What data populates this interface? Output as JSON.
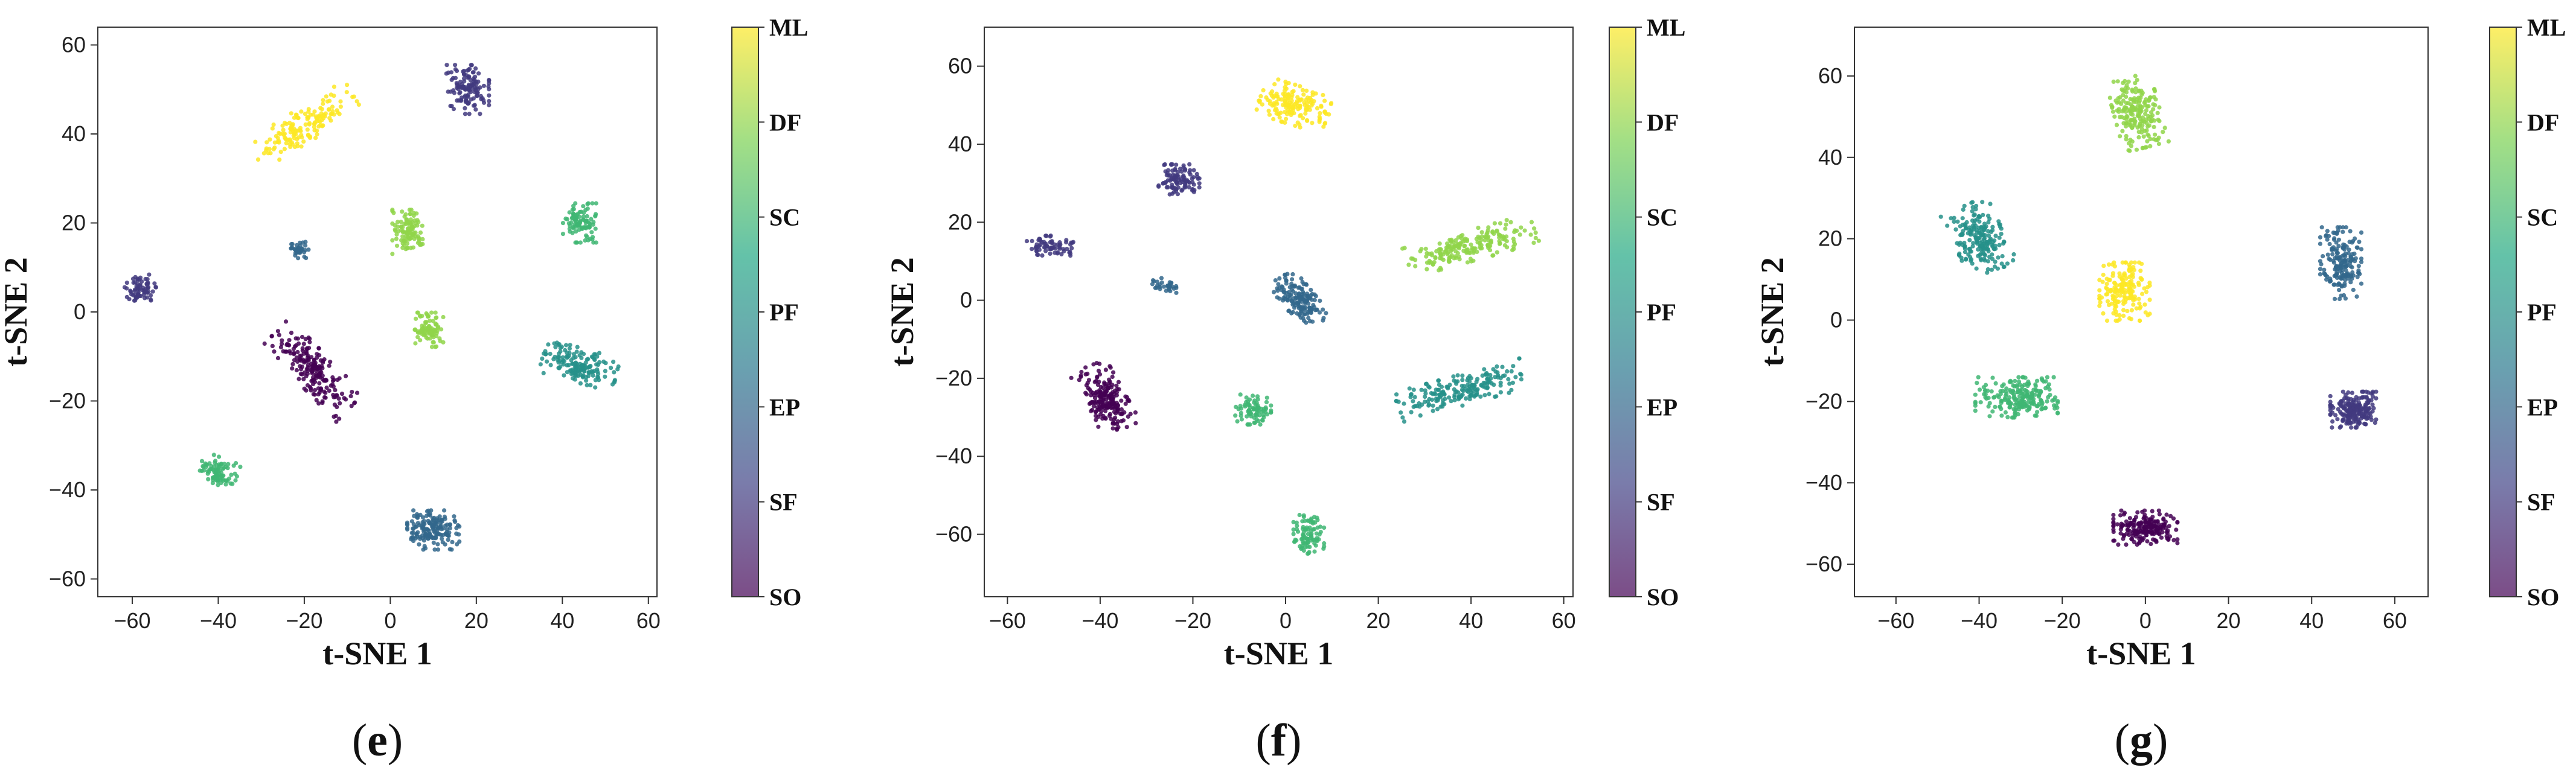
{
  "colors": {
    "viridis_stops": [
      "#440154",
      "#414487",
      "#2a788e",
      "#22a884",
      "#7ad151",
      "#fde725"
    ]
  },
  "colorbar_labels": [
    "SO",
    "SF",
    "EP",
    "PF",
    "SC",
    "DF",
    "ML"
  ],
  "chart_data": [
    {
      "type": "scatter",
      "caption": "e",
      "xlabel": "t-SNE 1",
      "ylabel": "t-SNE 2",
      "xlim": [
        -68,
        62
      ],
      "ylim": [
        -64,
        64
      ],
      "xticks": [
        -60,
        -40,
        -20,
        0,
        20,
        40,
        60
      ],
      "yticks": [
        -60,
        -40,
        -20,
        0,
        20,
        40,
        60
      ],
      "colorbar": [
        "SO",
        "SF",
        "EP",
        "PF",
        "SC",
        "DF",
        "ML"
      ],
      "clusters": [
        {
          "class": "ML",
          "cx": -20,
          "cy": 42,
          "sx": 12,
          "sy": 3.5,
          "angle": 32,
          "n": 160
        },
        {
          "class": "SF",
          "cx": 18,
          "cy": 50,
          "sx": 4.5,
          "sy": 5,
          "angle": 0,
          "n": 130
        },
        {
          "class": "EP",
          "cx": -21,
          "cy": 14,
          "sx": 2,
          "sy": 1.8,
          "angle": 0,
          "n": 35
        },
        {
          "class": "DF",
          "cx": 4,
          "cy": 18,
          "sx": 3.2,
          "sy": 4.5,
          "angle": 0,
          "n": 110
        },
        {
          "class": "SC",
          "cx": 44,
          "cy": 20,
          "sx": 3.5,
          "sy": 4,
          "angle": 0,
          "n": 100
        },
        {
          "class": "SF",
          "cx": -58,
          "cy": 5,
          "sx": 3.5,
          "sy": 2.8,
          "angle": 20,
          "n": 70
        },
        {
          "class": "SO",
          "cx": -18,
          "cy": -13,
          "sx": 11,
          "sy": 4,
          "angle": -45,
          "n": 200
        },
        {
          "class": "DF",
          "cx": 9,
          "cy": -4,
          "sx": 3,
          "sy": 3.5,
          "angle": 0,
          "n": 90
        },
        {
          "class": "PF",
          "cx": 44,
          "cy": -12,
          "sx": 8,
          "sy": 3.5,
          "angle": -15,
          "n": 160
        },
        {
          "class": "SC",
          "cx": -40,
          "cy": -36,
          "sx": 4,
          "sy": 3,
          "angle": -20,
          "n": 90
        },
        {
          "class": "EP",
          "cx": 10,
          "cy": -49,
          "sx": 5.5,
          "sy": 4,
          "angle": 0,
          "n": 170
        }
      ]
    },
    {
      "type": "scatter",
      "caption": "f",
      "xlabel": "t-SNE 1",
      "ylabel": "t-SNE 2",
      "xlim": [
        -65,
        62
      ],
      "ylim": [
        -76,
        70
      ],
      "xticks": [
        -60,
        -40,
        -20,
        0,
        20,
        40,
        60
      ],
      "yticks": [
        -60,
        -40,
        -20,
        0,
        20,
        40,
        60
      ],
      "colorbar": [
        "SO",
        "SF",
        "EP",
        "PF",
        "SC",
        "DF",
        "ML"
      ],
      "clusters": [
        {
          "class": "ML",
          "cx": 2,
          "cy": 50,
          "sx": 7,
          "sy": 4.5,
          "angle": -20,
          "n": 160
        },
        {
          "class": "SF",
          "cx": -23,
          "cy": 31,
          "sx": 4,
          "sy": 3.5,
          "angle": 0,
          "n": 100
        },
        {
          "class": "SF",
          "cx": -51,
          "cy": 14,
          "sx": 4.5,
          "sy": 2.5,
          "angle": -10,
          "n": 70
        },
        {
          "class": "EP",
          "cx": -26,
          "cy": 4,
          "sx": 2.5,
          "sy": 1.5,
          "angle": -10,
          "n": 30
        },
        {
          "class": "EP",
          "cx": 3,
          "cy": 0,
          "sx": 6.5,
          "sy": 3.2,
          "angle": -55,
          "n": 160
        },
        {
          "class": "DF",
          "cx": 40,
          "cy": 14,
          "sx": 13,
          "sy": 3.5,
          "angle": 18,
          "n": 200
        },
        {
          "class": "SO",
          "cx": -39,
          "cy": -25,
          "sx": 8,
          "sy": 4,
          "angle": -65,
          "n": 200
        },
        {
          "class": "SC",
          "cx": -7,
          "cy": -28,
          "sx": 3.5,
          "sy": 3.5,
          "angle": 0,
          "n": 80
        },
        {
          "class": "PF",
          "cx": 38,
          "cy": -23,
          "sx": 13,
          "sy": 3.5,
          "angle": 18,
          "n": 200
        },
        {
          "class": "SC",
          "cx": 5,
          "cy": -60,
          "sx": 3,
          "sy": 4.5,
          "angle": 0,
          "n": 90
        }
      ]
    },
    {
      "type": "scatter",
      "caption": "g",
      "xlabel": "t-SNE 1",
      "ylabel": "t-SNE 2",
      "xlim": [
        -70,
        68
      ],
      "ylim": [
        -68,
        72
      ],
      "xticks": [
        -60,
        -40,
        -20,
        0,
        20,
        40,
        60
      ],
      "yticks": [
        -60,
        -40,
        -20,
        0,
        20,
        40,
        60
      ],
      "colorbar": [
        "SO",
        "SF",
        "EP",
        "PF",
        "SC",
        "DF",
        "ML"
      ],
      "clusters": [
        {
          "class": "DF",
          "cx": -2,
          "cy": 51,
          "sx": 5,
          "sy": 8,
          "angle": 15,
          "n": 200
        },
        {
          "class": "PF",
          "cx": -40,
          "cy": 20,
          "sx": 5.5,
          "sy": 8,
          "angle": 25,
          "n": 200
        },
        {
          "class": "ML",
          "cx": -5,
          "cy": 7,
          "sx": 5.5,
          "sy": 6.5,
          "angle": 0,
          "n": 180
        },
        {
          "class": "EP",
          "cx": 47,
          "cy": 14,
          "sx": 4.5,
          "sy": 8,
          "angle": 0,
          "n": 180
        },
        {
          "class": "SC",
          "cx": -31,
          "cy": -19,
          "sx": 9,
          "sy": 4.5,
          "angle": 0,
          "n": 220
        },
        {
          "class": "SF",
          "cx": 50,
          "cy": -22,
          "sx": 5,
          "sy": 4,
          "angle": 0,
          "n": 200
        },
        {
          "class": "SO",
          "cx": 0,
          "cy": -51,
          "sx": 7,
          "sy": 3.8,
          "angle": 0,
          "n": 200
        }
      ]
    }
  ]
}
